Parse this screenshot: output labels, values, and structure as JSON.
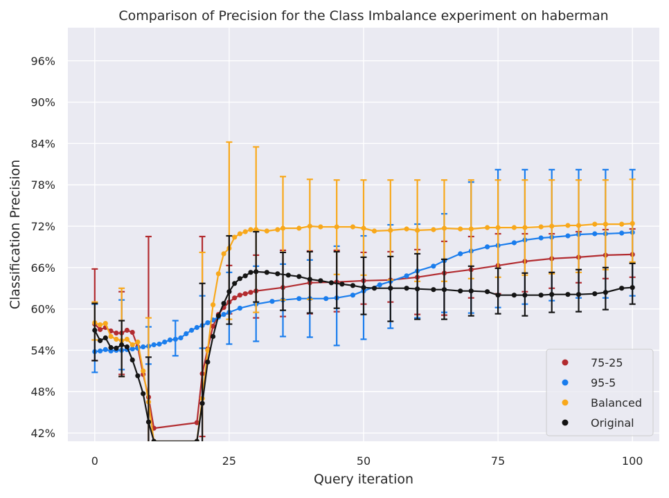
{
  "chart_data": {
    "type": "line",
    "title": "Comparison of Precision for the Class Imbalance experiment on haberman",
    "xlabel": "Query iteration",
    "ylabel": "Classification Precision",
    "xlim": [
      -5,
      105
    ],
    "ylim": [
      40.8,
      100.8
    ],
    "xticks": [
      0,
      25,
      50,
      75,
      100
    ],
    "xtick_labels": [
      "0",
      "25",
      "50",
      "75",
      "100"
    ],
    "yticks": [
      42,
      48,
      54,
      60,
      66,
      72,
      78,
      84,
      90,
      96
    ],
    "ytick_labels": [
      "42%",
      "48%",
      "54%",
      "60%",
      "66%",
      "72%",
      "78%",
      "84%",
      "90%",
      "96%"
    ],
    "grid": true,
    "legend_position": "lower-right",
    "error_bar_every": 5,
    "series": [
      {
        "name": "75-25",
        "color": "#b22b2f",
        "points": [
          [
            0,
            57.8
          ],
          [
            1,
            57.0
          ],
          [
            2,
            57.3
          ],
          [
            3,
            56.8
          ],
          [
            4,
            56.5
          ],
          [
            5,
            56.5
          ],
          [
            6,
            56.9
          ],
          [
            7,
            56.6
          ],
          [
            8,
            54.5
          ],
          [
            9,
            50.5
          ],
          [
            10,
            47.2
          ],
          [
            11,
            42.7
          ],
          [
            19,
            43.5
          ],
          [
            20,
            50.6
          ],
          [
            21,
            54.2
          ],
          [
            22,
            57.5
          ],
          [
            23,
            59.2
          ],
          [
            24,
            60.2
          ],
          [
            25,
            61.0
          ],
          [
            26,
            61.6
          ],
          [
            27,
            62.0
          ],
          [
            28,
            62.2
          ],
          [
            29,
            62.4
          ],
          [
            30,
            62.6
          ],
          [
            35,
            63.1
          ],
          [
            40,
            63.8
          ],
          [
            45,
            63.9
          ],
          [
            50,
            64.1
          ],
          [
            55,
            64.2
          ],
          [
            60,
            64.6
          ],
          [
            65,
            65.2
          ],
          [
            70,
            65.7
          ],
          [
            75,
            66.3
          ],
          [
            80,
            66.9
          ],
          [
            85,
            67.3
          ],
          [
            90,
            67.5
          ],
          [
            95,
            67.8
          ],
          [
            100,
            67.9
          ]
        ],
        "errors": [
          [
            0,
            52.5,
            65.8
          ],
          [
            5,
            50.5,
            62.5
          ],
          [
            10,
            38.0,
            70.5
          ],
          [
            20,
            41.5,
            70.5
          ],
          [
            25,
            59.3,
            66.3
          ],
          [
            30,
            58.7,
            67.8
          ],
          [
            35,
            58.9,
            68.5
          ],
          [
            40,
            59.3,
            68.4
          ],
          [
            45,
            59.6,
            68.5
          ],
          [
            50,
            60.7,
            68.2
          ],
          [
            55,
            61.0,
            68.3
          ],
          [
            60,
            59.2,
            68.6
          ],
          [
            65,
            59.1,
            69.8
          ],
          [
            70,
            61.6,
            70.5
          ],
          [
            75,
            62.2,
            70.9
          ],
          [
            80,
            62.5,
            70.9
          ],
          [
            85,
            63.0,
            70.9
          ],
          [
            90,
            63.8,
            71.2
          ],
          [
            95,
            64.4,
            71.5
          ],
          [
            100,
            64.6,
            71.6
          ]
        ]
      },
      {
        "name": "95-5",
        "color": "#1a7ded",
        "points": [
          [
            0,
            53.8
          ],
          [
            1,
            53.9
          ],
          [
            2,
            54.1
          ],
          [
            3,
            53.9
          ],
          [
            4,
            54.0
          ],
          [
            5,
            54.0
          ],
          [
            6,
            54.1
          ],
          [
            7,
            54.2
          ],
          [
            8,
            54.3
          ],
          [
            9,
            54.5
          ],
          [
            10,
            54.6
          ],
          [
            11,
            54.8
          ],
          [
            12,
            54.9
          ],
          [
            13,
            55.2
          ],
          [
            14,
            55.5
          ],
          [
            15,
            55.6
          ],
          [
            16,
            55.8
          ],
          [
            17,
            56.4
          ],
          [
            18,
            56.9
          ],
          [
            19,
            57.3
          ],
          [
            20,
            57.6
          ],
          [
            21,
            58.0
          ],
          [
            22,
            58.4
          ],
          [
            23,
            58.8
          ],
          [
            24,
            59.2
          ],
          [
            25,
            59.5
          ],
          [
            27,
            60.1
          ],
          [
            30,
            60.7
          ],
          [
            33,
            61.1
          ],
          [
            35,
            61.3
          ],
          [
            38,
            61.5
          ],
          [
            40,
            61.5
          ],
          [
            43,
            61.5
          ],
          [
            45,
            61.6
          ],
          [
            48,
            62.0
          ],
          [
            50,
            62.6
          ],
          [
            53,
            63.5
          ],
          [
            55,
            64.0
          ],
          [
            58,
            64.8
          ],
          [
            60,
            65.5
          ],
          [
            63,
            66.2
          ],
          [
            65,
            67.0
          ],
          [
            68,
            68.0
          ],
          [
            70,
            68.4
          ],
          [
            73,
            69.0
          ],
          [
            75,
            69.2
          ],
          [
            78,
            69.6
          ],
          [
            80,
            70.0
          ],
          [
            83,
            70.3
          ],
          [
            85,
            70.4
          ],
          [
            88,
            70.6
          ],
          [
            90,
            70.8
          ],
          [
            93,
            70.9
          ],
          [
            95,
            70.9
          ],
          [
            98,
            71.0
          ],
          [
            100,
            71.1
          ]
        ],
        "errors": [
          [
            0,
            50.8,
            60.7
          ],
          [
            5,
            51.2,
            61.3
          ],
          [
            10,
            52.0,
            57.4
          ],
          [
            15,
            53.2,
            58.3
          ],
          [
            20,
            54.3,
            61.9
          ],
          [
            25,
            54.9,
            65.3
          ],
          [
            30,
            55.3,
            66.2
          ],
          [
            35,
            56.0,
            66.5
          ],
          [
            40,
            55.9,
            67.1
          ],
          [
            45,
            54.7,
            69.1
          ],
          [
            50,
            55.6,
            70.6
          ],
          [
            55,
            57.2,
            72.2
          ],
          [
            60,
            58.7,
            72.3
          ],
          [
            65,
            59.5,
            73.8
          ],
          [
            70,
            59.4,
            78.4
          ],
          [
            75,
            60.2,
            80.2
          ],
          [
            80,
            60.7,
            80.2
          ],
          [
            85,
            61.2,
            80.2
          ],
          [
            90,
            61.6,
            80.2
          ],
          [
            95,
            61.6,
            80.2
          ],
          [
            100,
            61.9,
            80.2
          ]
        ]
      },
      {
        "name": "Balanced",
        "color": "#f8a81b",
        "points": [
          [
            0,
            58.0
          ],
          [
            1,
            57.7
          ],
          [
            2,
            57.9
          ],
          [
            3,
            56.0
          ],
          [
            4,
            55.6
          ],
          [
            5,
            55.4
          ],
          [
            6,
            55.6
          ],
          [
            7,
            54.8
          ],
          [
            8,
            55.2
          ],
          [
            9,
            51.0
          ],
          [
            10,
            46.5
          ],
          [
            11,
            40.8
          ],
          [
            19,
            40.8
          ],
          [
            20,
            47.0
          ],
          [
            21,
            54.0
          ],
          [
            22,
            60.6
          ],
          [
            23,
            65.1
          ],
          [
            24,
            68.0
          ],
          [
            25,
            68.8
          ],
          [
            26,
            70.4
          ],
          [
            27,
            70.9
          ],
          [
            28,
            71.2
          ],
          [
            29,
            71.5
          ],
          [
            30,
            71.5
          ],
          [
            32,
            71.3
          ],
          [
            34,
            71.5
          ],
          [
            35,
            71.7
          ],
          [
            38,
            71.7
          ],
          [
            40,
            72.0
          ],
          [
            42,
            71.9
          ],
          [
            45,
            71.9
          ],
          [
            48,
            71.9
          ],
          [
            50,
            71.7
          ],
          [
            52,
            71.3
          ],
          [
            55,
            71.4
          ],
          [
            58,
            71.6
          ],
          [
            60,
            71.4
          ],
          [
            63,
            71.5
          ],
          [
            65,
            71.7
          ],
          [
            68,
            71.6
          ],
          [
            70,
            71.6
          ],
          [
            73,
            71.8
          ],
          [
            75,
            71.8
          ],
          [
            78,
            71.8
          ],
          [
            80,
            71.8
          ],
          [
            83,
            71.9
          ],
          [
            85,
            72.0
          ],
          [
            88,
            72.1
          ],
          [
            90,
            72.1
          ],
          [
            93,
            72.3
          ],
          [
            95,
            72.3
          ],
          [
            98,
            72.3
          ],
          [
            100,
            72.4
          ]
        ],
        "errors": [
          [
            0,
            55.5,
            61.0
          ],
          [
            5,
            50.2,
            63.0
          ],
          [
            10,
            38.0,
            58.7
          ],
          [
            20,
            40.0,
            68.2
          ],
          [
            25,
            58.5,
            84.2
          ],
          [
            30,
            59.5,
            83.5
          ],
          [
            35,
            61.3,
            79.2
          ],
          [
            40,
            61.4,
            78.8
          ],
          [
            45,
            65.0,
            78.7
          ],
          [
            50,
            64.9,
            78.7
          ],
          [
            55,
            64.2,
            78.7
          ],
          [
            60,
            64.0,
            78.7
          ],
          [
            65,
            64.0,
            78.7
          ],
          [
            70,
            64.4,
            78.7
          ],
          [
            75,
            64.6,
            78.7
          ],
          [
            80,
            64.9,
            78.7
          ],
          [
            85,
            65.1,
            78.7
          ],
          [
            90,
            65.3,
            78.7
          ],
          [
            95,
            65.7,
            78.7
          ],
          [
            100,
            66.8,
            78.8
          ]
        ]
      },
      {
        "name": "Original",
        "color": "#141414",
        "points": [
          [
            0,
            56.9
          ],
          [
            1,
            55.4
          ],
          [
            2,
            55.8
          ],
          [
            3,
            54.4
          ],
          [
            4,
            54.3
          ],
          [
            5,
            54.8
          ],
          [
            6,
            54.5
          ],
          [
            7,
            52.6
          ],
          [
            8,
            50.3
          ],
          [
            9,
            47.7
          ],
          [
            10,
            43.6
          ],
          [
            11,
            40.8
          ],
          [
            19,
            40.8
          ],
          [
            20,
            46.3
          ],
          [
            21,
            52.3
          ],
          [
            22,
            56.0
          ],
          [
            23,
            59.0
          ],
          [
            24,
            60.8
          ],
          [
            25,
            62.5
          ],
          [
            26,
            63.7
          ],
          [
            27,
            64.4
          ],
          [
            28,
            64.8
          ],
          [
            29,
            65.3
          ],
          [
            30,
            65.4
          ],
          [
            32,
            65.3
          ],
          [
            34,
            65.1
          ],
          [
            36,
            64.9
          ],
          [
            38,
            64.7
          ],
          [
            40,
            64.3
          ],
          [
            42,
            64.1
          ],
          [
            44,
            63.8
          ],
          [
            46,
            63.6
          ],
          [
            48,
            63.4
          ],
          [
            50,
            63.1
          ],
          [
            52,
            63.0
          ],
          [
            55,
            63.0
          ],
          [
            58,
            63.0
          ],
          [
            60,
            62.9
          ],
          [
            63,
            62.8
          ],
          [
            65,
            62.8
          ],
          [
            68,
            62.6
          ],
          [
            70,
            62.6
          ],
          [
            73,
            62.5
          ],
          [
            75,
            62.0
          ],
          [
            78,
            62.0
          ],
          [
            80,
            62.0
          ],
          [
            83,
            62.0
          ],
          [
            85,
            62.1
          ],
          [
            88,
            62.1
          ],
          [
            90,
            62.1
          ],
          [
            93,
            62.2
          ],
          [
            95,
            62.4
          ],
          [
            98,
            63.0
          ],
          [
            100,
            63.1
          ]
        ],
        "errors": [
          [
            0,
            52.5,
            60.8
          ],
          [
            5,
            50.2,
            58.3
          ],
          [
            10,
            35.0,
            53.0
          ],
          [
            20,
            35.0,
            63.7
          ],
          [
            25,
            57.8,
            70.6
          ],
          [
            30,
            61.0,
            71.2
          ],
          [
            35,
            59.8,
            68.2
          ],
          [
            40,
            59.4,
            68.3
          ],
          [
            45,
            60.1,
            68.3
          ],
          [
            50,
            59.2,
            67.5
          ],
          [
            55,
            58.2,
            67.6
          ],
          [
            60,
            58.5,
            68.0
          ],
          [
            65,
            58.5,
            67.2
          ],
          [
            70,
            59.0,
            66.2
          ],
          [
            75,
            59.3,
            65.9
          ],
          [
            80,
            59.0,
            65.2
          ],
          [
            85,
            59.5,
            65.3
          ],
          [
            90,
            59.6,
            65.7
          ],
          [
            95,
            59.9,
            66.0
          ],
          [
            100,
            60.7,
            66.6
          ]
        ]
      }
    ]
  }
}
